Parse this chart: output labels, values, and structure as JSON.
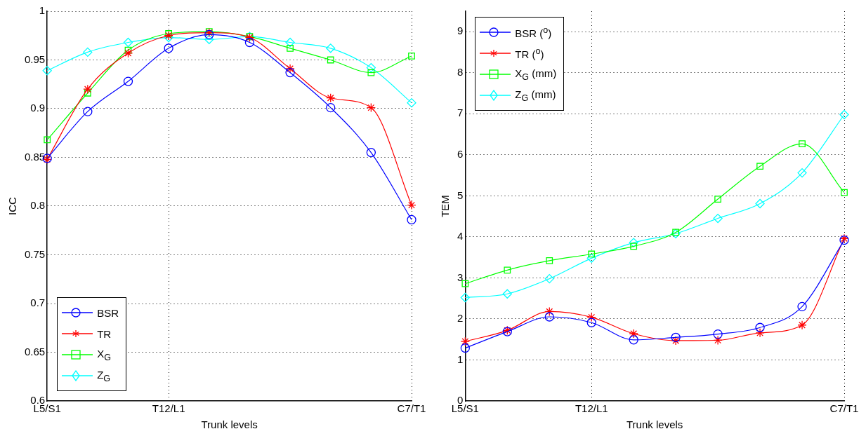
{
  "chart_data": [
    {
      "type": "line",
      "xlabel": "Trunk levels",
      "ylabel": "ICC",
      "categories": [
        "L5/S1",
        null,
        null,
        "T12/L1",
        null,
        null,
        null,
        null,
        null,
        "C7/T1"
      ],
      "series": [
        {
          "name": "BSR",
          "color": "#0000ff",
          "marker": "circle",
          "values": [
            0.849,
            0.897,
            0.928,
            0.962,
            0.976,
            0.968,
            0.937,
            0.901,
            0.855,
            0.786
          ]
        },
        {
          "name": "TR",
          "color": "#ff0000",
          "marker": "cross",
          "values": [
            0.848,
            0.92,
            0.957,
            0.975,
            0.978,
            0.973,
            0.941,
            0.911,
            0.901,
            0.801
          ]
        },
        {
          "name": "X$_{G}$",
          "color": "#00ff00",
          "marker": "square",
          "values": [
            0.868,
            0.916,
            0.96,
            0.977,
            0.979,
            0.974,
            0.962,
            0.95,
            0.937,
            0.954
          ]
        },
        {
          "name": "Z$_{G}$",
          "color": "#00ffff",
          "marker": "diamond",
          "values": [
            0.939,
            0.958,
            0.968,
            0.973,
            0.971,
            0.974,
            0.968,
            0.962,
            0.942,
            0.906
          ]
        }
      ],
      "ylim": [
        0.6,
        1
      ],
      "yticks": [
        0.6,
        0.65,
        0.7,
        0.75,
        0.8,
        0.85,
        0.9,
        0.95,
        1
      ],
      "grid": true,
      "legend": "bottom left",
      "line_style": "solid"
    },
    {
      "type": "line",
      "xlabel": "Trunk levels",
      "ylabel": "TEM",
      "categories": [
        "L5/S1",
        null,
        null,
        "T12/L1",
        null,
        null,
        null,
        null,
        null,
        "C7/T1"
      ],
      "series": [
        {
          "name": "BSR ($^{o}$)",
          "color": "#0000ff",
          "marker": "circle",
          "values": [
            1.29,
            1.69,
            2.05,
            1.91,
            1.49,
            1.55,
            1.63,
            1.79,
            2.3,
            3.92
          ]
        },
        {
          "name": "TR ($^{o}$)",
          "color": "#ff0000",
          "marker": "cross",
          "values": [
            1.45,
            1.72,
            2.18,
            2.04,
            1.64,
            1.47,
            1.48,
            1.66,
            1.85,
            3.96
          ]
        },
        {
          "name": "X$_{G}$ (mm)",
          "color": "#00ff00",
          "marker": "square",
          "values": [
            2.86,
            3.19,
            3.42,
            3.58,
            3.77,
            4.11,
            4.92,
            5.72,
            6.27,
            5.08
          ]
        },
        {
          "name": "Z$_{G}$ (mm)",
          "color": "#00ffff",
          "marker": "diamond",
          "values": [
            2.52,
            2.61,
            2.98,
            3.48,
            3.86,
            4.08,
            4.45,
            4.81,
            5.56,
            6.98
          ]
        }
      ],
      "ylim": [
        0,
        9.5
      ],
      "yticks": [
        0,
        1,
        2,
        3,
        4,
        5,
        6,
        7,
        8,
        9
      ],
      "grid": true,
      "legend": "top left",
      "line_style": "solid"
    }
  ]
}
